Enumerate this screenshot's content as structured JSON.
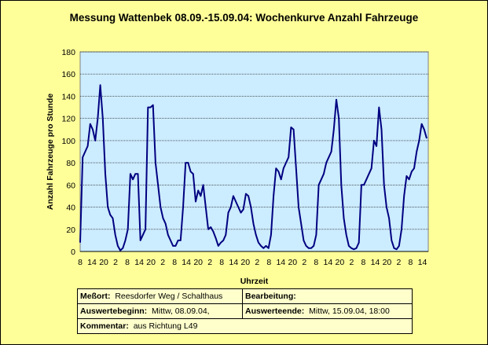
{
  "title": "Messung Wattenbek 08.09.-15.09.04: Wochenkurve Anzahl Fahrzeuge",
  "chart_data": {
    "type": "line",
    "title": "Messung Wattenbek 08.09.-15.09.04: Wochenkurve Anzahl Fahrzeuge",
    "xlabel": "Uhrzeit",
    "ylabel": "Anzahl Fahrzeuge pro Stunde",
    "ylim": [
      0,
      180
    ],
    "yticks": [
      0,
      20,
      40,
      60,
      80,
      100,
      120,
      140,
      160,
      180
    ],
    "xticks": [
      "8",
      "14",
      "20",
      "2",
      "8",
      "14",
      "20",
      "2",
      "8",
      "14",
      "20",
      "2",
      "8",
      "14",
      "20",
      "2",
      "8",
      "14",
      "20",
      "2",
      "8",
      "14",
      "20",
      "2",
      "8",
      "14",
      "20",
      "2",
      "8",
      "14"
    ],
    "grid": "horizontal",
    "legend": "none",
    "colors": {
      "plot_background": "#ccecff",
      "line": "#000080",
      "page_background": "#ffff99"
    },
    "series": [
      {
        "values": [
          8,
          85,
          90,
          95,
          115,
          110,
          100,
          120,
          150,
          120,
          70,
          40,
          33,
          30,
          15,
          5,
          1,
          3,
          10,
          20,
          70,
          65,
          70,
          70,
          10,
          15,
          20,
          130,
          130,
          132,
          80,
          60,
          40,
          30,
          25,
          15,
          10,
          5,
          5,
          10,
          10,
          40,
          80,
          80,
          72,
          70,
          45,
          55,
          50,
          60,
          40,
          20,
          22,
          18,
          12,
          5,
          8,
          10,
          15,
          35,
          40,
          50,
          45,
          40,
          35,
          38,
          52,
          50,
          40,
          25,
          15,
          8,
          5,
          3,
          5,
          3,
          15,
          50,
          75,
          72,
          65,
          75,
          80,
          85,
          112,
          110,
          75,
          40,
          25,
          10,
          5,
          3,
          3,
          5,
          15,
          60,
          65,
          70,
          80,
          85,
          90,
          110,
          137,
          120,
          60,
          30,
          15,
          5,
          3,
          2,
          3,
          8,
          60,
          60,
          65,
          70,
          75,
          100,
          95,
          130,
          110,
          60,
          40,
          30,
          10,
          3,
          2,
          5,
          20,
          50,
          68,
          65,
          72,
          75,
          90,
          100,
          115,
          110,
          102
        ]
      }
    ]
  },
  "info": {
    "messort_label": "Meßort:",
    "messort_value": "Reesdorfer Weg / Schalthaus",
    "bearbeitung_label": "Bearbeitung:",
    "bearbeitung_value": "",
    "auswertebeginn_label": "Auswertebeginn:",
    "auswertebeginn_value": "Mittw, 08.09.04,",
    "auswerteende_label": "Auswerteende:",
    "auswerteende_value": "Mittw, 15.09.04, 18:00",
    "kommentar_label": "Kommentar:",
    "kommentar_value": "aus Richtung L49"
  }
}
